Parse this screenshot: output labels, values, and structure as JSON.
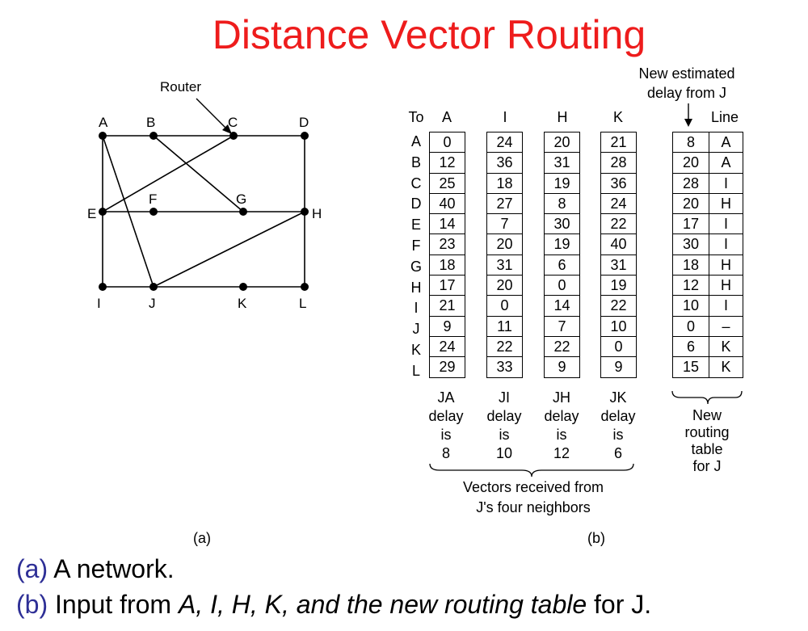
{
  "title": "Distance Vector Routing",
  "network": {
    "router_label": "Router",
    "nodes": [
      "A",
      "B",
      "C",
      "D",
      "E",
      "F",
      "G",
      "H",
      "I",
      "J",
      "K",
      "L"
    ],
    "edges": [
      [
        "A",
        "B"
      ],
      [
        "B",
        "C"
      ],
      [
        "C",
        "D"
      ],
      [
        "A",
        "E"
      ],
      [
        "E",
        "C"
      ],
      [
        "B",
        "G"
      ],
      [
        "E",
        "F"
      ],
      [
        "F",
        "G"
      ],
      [
        "G",
        "H"
      ],
      [
        "D",
        "H"
      ],
      [
        "H",
        "L"
      ],
      [
        "A",
        "J"
      ],
      [
        "E",
        "I"
      ],
      [
        "I",
        "J"
      ],
      [
        "J",
        "K"
      ],
      [
        "K",
        "L"
      ],
      [
        "J",
        "H"
      ]
    ]
  },
  "table": {
    "to_label": "To",
    "rows": [
      "A",
      "B",
      "C",
      "D",
      "E",
      "F",
      "G",
      "H",
      "I",
      "J",
      "K",
      "L"
    ],
    "vectors": [
      {
        "neighbor": "A",
        "values": [
          "0",
          "12",
          "25",
          "40",
          "14",
          "23",
          "18",
          "17",
          "21",
          "9",
          "24",
          "29"
        ],
        "caption": [
          "JA",
          "delay",
          "is",
          "8"
        ]
      },
      {
        "neighbor": "I",
        "values": [
          "24",
          "36",
          "18",
          "27",
          "7",
          "20",
          "31",
          "20",
          "0",
          "11",
          "22",
          "33"
        ],
        "caption": [
          "JI",
          "delay",
          "is",
          "10"
        ]
      },
      {
        "neighbor": "H",
        "values": [
          "20",
          "31",
          "19",
          "8",
          "30",
          "19",
          "6",
          "0",
          "14",
          "7",
          "22",
          "9"
        ],
        "caption": [
          "JH",
          "delay",
          "is",
          "12"
        ]
      },
      {
        "neighbor": "K",
        "values": [
          "21",
          "28",
          "36",
          "24",
          "22",
          "40",
          "31",
          "19",
          "22",
          "10",
          "0",
          "9"
        ],
        "caption": [
          "JK",
          "delay",
          "is",
          "6"
        ]
      }
    ],
    "new_estimate_label": [
      "New estimated",
      "delay from J"
    ],
    "line_label": "Line",
    "new_table": [
      {
        "delay": "8",
        "line": "A"
      },
      {
        "delay": "20",
        "line": "A"
      },
      {
        "delay": "28",
        "line": "I"
      },
      {
        "delay": "20",
        "line": "H"
      },
      {
        "delay": "17",
        "line": "I"
      },
      {
        "delay": "30",
        "line": "I"
      },
      {
        "delay": "18",
        "line": "H"
      },
      {
        "delay": "12",
        "line": "H"
      },
      {
        "delay": "10",
        "line": "I"
      },
      {
        "delay": "0",
        "line": "–"
      },
      {
        "delay": "6",
        "line": "K"
      },
      {
        "delay": "15",
        "line": "K"
      }
    ],
    "new_table_caption": [
      "New",
      "routing",
      "table",
      "for J"
    ],
    "vectors_caption": [
      "Vectors received from",
      "J's four neighbors"
    ]
  },
  "sublabels": {
    "a": "(a)",
    "b": "(b)"
  },
  "captions": {
    "a_prefix": "(a)",
    "a_text": " A network.",
    "b_prefix": "(b)",
    "b_text1": " Input from ",
    "b_italic": "A, I, H, K, and the new routing table",
    "b_text2": " for J."
  }
}
